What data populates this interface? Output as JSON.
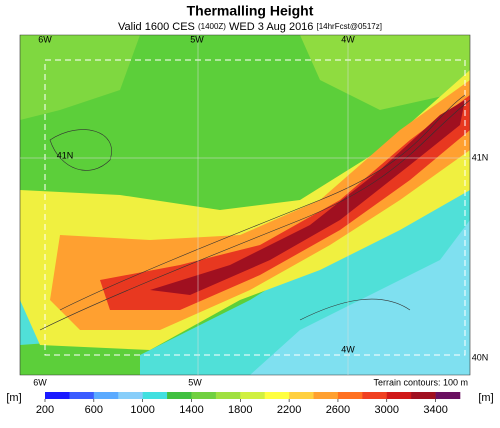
{
  "title": "Thermalling Height",
  "subtitle": [
    "Valid 1600 CES",
    "(1400Z)",
    "WED 3 Aug 2016",
    "[14hrFcst@0517z]"
  ],
  "map_labels": {
    "top": [
      "6W",
      "5W",
      "4W"
    ],
    "bottom": [
      "6W",
      "5W",
      "4W"
    ],
    "left": [
      "41N"
    ],
    "right": [
      "41N",
      "40N"
    ]
  },
  "terrain_note": "Terrain contours: 100 m",
  "colorbar": {
    "unit": "[m]",
    "lim": [
      200,
      3600
    ],
    "ticks": [
      200,
      600,
      1000,
      1400,
      1800,
      2200,
      2600,
      3000,
      3400
    ],
    "colors": [
      "#1a1aff",
      "#3a5cff",
      "#5aaaff",
      "#87cefa",
      "#40e0e0",
      "#40c040",
      "#70d040",
      "#a0e040",
      "#d0f040",
      "#ffff40",
      "#ffd040",
      "#ffa030",
      "#ff7020",
      "#f04020",
      "#d01818",
      "#a01020",
      "#6a1060"
    ]
  }
}
